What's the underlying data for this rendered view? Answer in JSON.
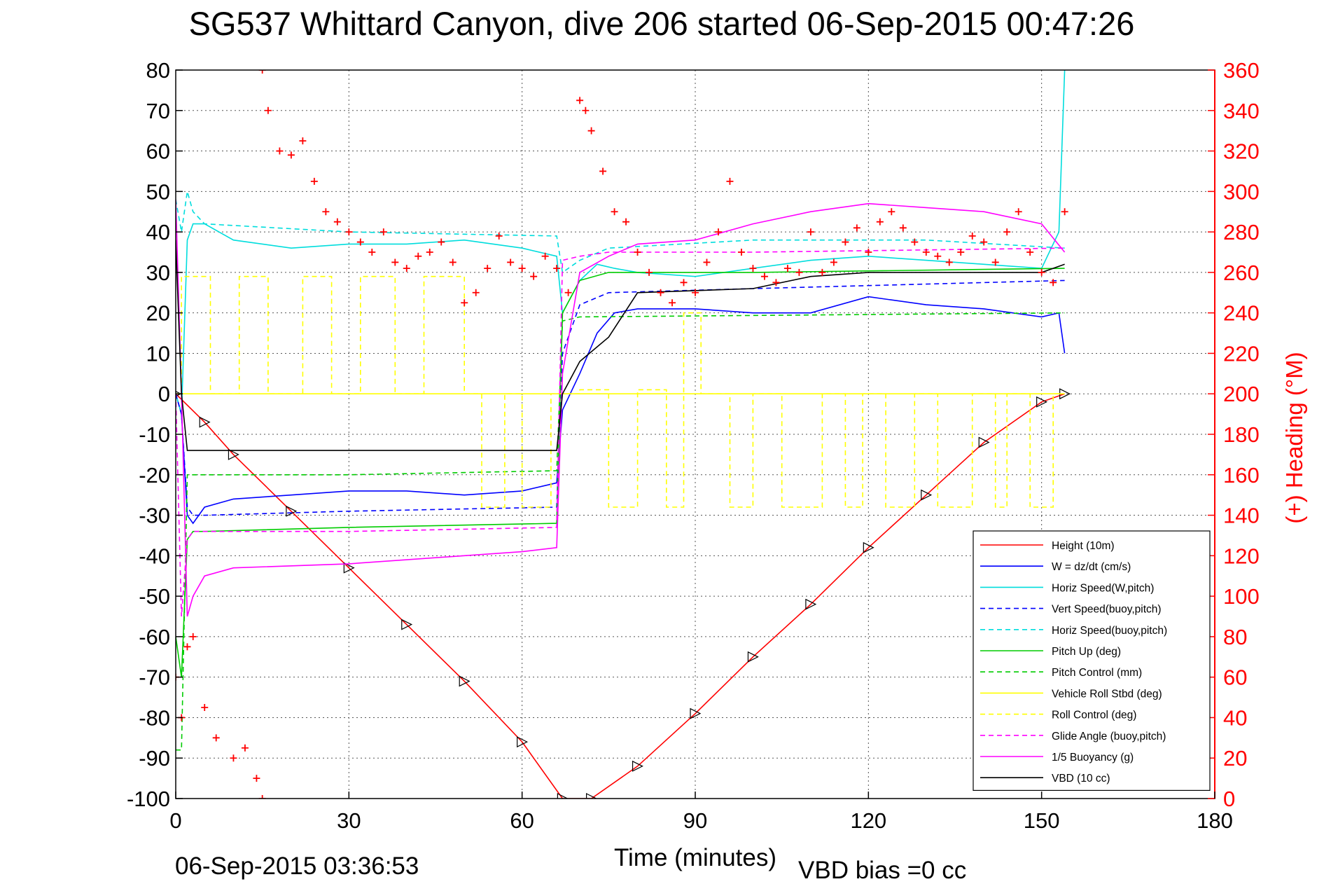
{
  "chart_data": {
    "type": "line",
    "title": "SG537 Whittard Canyon, dive 206 started 06-Sep-2015 00:47:26",
    "xlabel": "Time (minutes)",
    "ylabel": "",
    "y2label": "(+) Heading (°M)",
    "xlim": [
      0,
      180
    ],
    "ylim": [
      -100,
      80
    ],
    "y2lim": [
      0,
      360
    ],
    "x_ticks": [
      "0",
      "30",
      "60",
      "90",
      "120",
      "150",
      "180"
    ],
    "y_ticks": [
      "80",
      "70",
      "60",
      "50",
      "40",
      "30",
      "20",
      "10",
      "0",
      "-10",
      "-20",
      "-30",
      "-40",
      "-50",
      "-60",
      "-70",
      "-80",
      "-90",
      "-100"
    ],
    "y2_ticks": [
      "360",
      "340",
      "320",
      "300",
      "280",
      "260",
      "240",
      "220",
      "200",
      "180",
      "160",
      "140",
      "120",
      "100",
      "80",
      "60",
      "40",
      "20",
      "0"
    ],
    "grid": true,
    "legend_position": "bottom-right",
    "footer_left": "06-Sep-2015 03:36:53",
    "footer_right": "VBD bias =0 cc",
    "series": [
      {
        "name": "Height (10m)",
        "color": "#ff0000",
        "style": "solid",
        "x": [
          0,
          5,
          10,
          20,
          30,
          40,
          50,
          60,
          67,
          72,
          80,
          90,
          100,
          110,
          120,
          130,
          140,
          150,
          154
        ],
        "y": [
          0,
          -7,
          -15,
          -29,
          -43,
          -57,
          -71,
          -86,
          -100,
          -100,
          -92,
          -79,
          -65,
          -52,
          -38,
          -25,
          -12,
          -2,
          0
        ]
      },
      {
        "name": "W = dz/dt (cm/s)",
        "color": "#0000ff",
        "style": "solid",
        "x": [
          0,
          1,
          2,
          3,
          5,
          10,
          20,
          30,
          40,
          50,
          60,
          66,
          67,
          70,
          73,
          76,
          80,
          90,
          100,
          110,
          120,
          130,
          140,
          150,
          153,
          154
        ],
        "y": [
          0,
          -5,
          -30,
          -32,
          -28,
          -26,
          -25,
          -24,
          -24,
          -25,
          -24,
          -22,
          -4,
          5,
          15,
          20,
          21,
          21,
          20,
          20,
          24,
          22,
          21,
          19,
          20,
          10
        ]
      },
      {
        "name": "Horiz Speed(W,pitch)",
        "color": "#00dddd",
        "style": "solid",
        "x": [
          0,
          1,
          2,
          3,
          5,
          10,
          20,
          30,
          40,
          50,
          60,
          66,
          67,
          70,
          73,
          76,
          80,
          90,
          100,
          110,
          120,
          130,
          140,
          150,
          153,
          154
        ],
        "y": [
          0,
          -5,
          38,
          42,
          42,
          38,
          36,
          37,
          37,
          38,
          36,
          34,
          20,
          28,
          32,
          31,
          30,
          29,
          31,
          33,
          34,
          33,
          32,
          31,
          40,
          80
        ]
      },
      {
        "name": "Vert Speed(buoy,pitch)",
        "color": "#0000ff",
        "style": "dashed",
        "x": [
          0,
          1,
          2,
          3,
          5,
          30,
          66,
          67,
          70,
          75,
          100,
          154
        ],
        "y": [
          0,
          -5,
          -28,
          -30,
          -30,
          -29,
          -28,
          10,
          22,
          25,
          26,
          28
        ]
      },
      {
        "name": "Horiz Speed(buoy,pitch)",
        "color": "#00dddd",
        "style": "dashed",
        "x": [
          0,
          1,
          2,
          3,
          5,
          30,
          66,
          67,
          70,
          75,
          100,
          130,
          154
        ],
        "y": [
          48,
          40,
          50,
          45,
          42,
          40,
          39,
          30,
          33,
          36,
          38,
          38,
          36
        ]
      },
      {
        "name": "Pitch Up (deg)",
        "color": "#00cc00",
        "style": "solid",
        "x": [
          0,
          1,
          2,
          3,
          5,
          30,
          66,
          67,
          70,
          75,
          100,
          154
        ],
        "y": [
          -60,
          -70,
          -36,
          -34,
          -34,
          -33,
          -32,
          20,
          28,
          30,
          30,
          31
        ]
      },
      {
        "name": "Pitch Control (mm)",
        "color": "#00cc00",
        "style": "dashed",
        "x": [
          0,
          1,
          2,
          3,
          30,
          66,
          67,
          70,
          154
        ],
        "y": [
          -88,
          -88,
          -20,
          -20,
          -20,
          -19,
          18,
          19,
          20
        ]
      },
      {
        "name": "Vehicle Roll Stbd (deg)",
        "color": "#ffff00",
        "style": "solid",
        "x": [
          0,
          2,
          5,
          30,
          60,
          90,
          120,
          154
        ],
        "y": [
          0,
          0,
          0,
          0,
          0,
          0,
          0,
          0
        ]
      },
      {
        "name": "Roll Control (deg)",
        "color": "#ffff00",
        "style": "dashed",
        "x": [
          0,
          1,
          1,
          6,
          6,
          11,
          11,
          16,
          16,
          22,
          22,
          27,
          27,
          32,
          32,
          38,
          38,
          43,
          43,
          50,
          50,
          53,
          53,
          57,
          57,
          60,
          60,
          65,
          65,
          70,
          70,
          75,
          75,
          80,
          80,
          85,
          85,
          88,
          88,
          91,
          91,
          96,
          96,
          100,
          100,
          105,
          105,
          112,
          112,
          116,
          116,
          119,
          119,
          123,
          123,
          128,
          128,
          132,
          132,
          138,
          138,
          142,
          142,
          144,
          144,
          148,
          148,
          152,
          152,
          154
        ],
        "y": [
          0,
          0,
          29,
          29,
          0,
          0,
          29,
          29,
          0,
          0,
          29,
          29,
          0,
          0,
          29,
          29,
          0,
          0,
          29,
          29,
          0,
          0,
          -28,
          -28,
          0,
          0,
          -28,
          -28,
          0,
          0,
          1,
          1,
          -28,
          -28,
          1,
          1,
          -28,
          -28,
          20,
          20,
          0,
          0,
          -28,
          -28,
          0,
          0,
          -28,
          -28,
          0,
          0,
          -28,
          -28,
          0,
          0,
          -28,
          -28,
          0,
          0,
          -28,
          -28,
          0,
          0,
          -28,
          -28,
          0,
          0,
          -28,
          -28,
          0,
          0
        ]
      },
      {
        "name": "Glide Angle (buoy,pitch)",
        "color": "#ff00ff",
        "style": "dashed",
        "x": [
          0,
          1,
          2,
          3,
          5,
          30,
          66,
          67,
          70,
          75,
          100,
          154
        ],
        "y": [
          0,
          -55,
          -36,
          -34,
          -34,
          -34,
          -33,
          33,
          34,
          35,
          35,
          36
        ]
      },
      {
        "name": "1/5 Buoyancy (g)",
        "color": "#ff00ff",
        "style": "solid",
        "x": [
          0,
          1,
          2,
          3,
          5,
          10,
          30,
          50,
          60,
          66,
          67,
          70,
          75,
          80,
          90,
          100,
          110,
          120,
          130,
          140,
          150,
          154
        ],
        "y": [
          48,
          0,
          -55,
          -50,
          -45,
          -43,
          -42,
          -40,
          -39,
          -38,
          5,
          30,
          34,
          37,
          38,
          42,
          45,
          47,
          46,
          45,
          42,
          35
        ]
      },
      {
        "name": "VBD (10 cc)",
        "color": "#000000",
        "style": "solid",
        "x": [
          0,
          1,
          2,
          66,
          67,
          70,
          75,
          80,
          100,
          110,
          120,
          150,
          154
        ],
        "y": [
          38,
          0,
          -14,
          -14,
          0,
          8,
          14,
          25,
          26,
          29,
          30,
          30,
          32
        ]
      },
      {
        "name": "Heading",
        "color": "#ff0000",
        "style": "plus",
        "axis": "right",
        "x": [
          0,
          1,
          2,
          3,
          5,
          7,
          10,
          12,
          14,
          15,
          15,
          16,
          18,
          20,
          22,
          24,
          26,
          28,
          30,
          32,
          34,
          36,
          38,
          40,
          42,
          44,
          46,
          48,
          50,
          52,
          54,
          56,
          58,
          60,
          62,
          64,
          66,
          68,
          70,
          71,
          72,
          74,
          76,
          78,
          80,
          82,
          84,
          86,
          88,
          90,
          92,
          94,
          96,
          98,
          100,
          102,
          104,
          106,
          108,
          110,
          112,
          114,
          116,
          118,
          120,
          122,
          124,
          126,
          128,
          130,
          132,
          134,
          136,
          138,
          140,
          142,
          144,
          146,
          148,
          150,
          152,
          154
        ],
        "y": [
          60,
          40,
          75,
          80,
          45,
          30,
          20,
          25,
          10,
          0,
          360,
          340,
          320,
          318,
          325,
          305,
          290,
          285,
          280,
          275,
          270,
          280,
          265,
          262,
          268,
          270,
          275,
          265,
          245,
          250,
          262,
          278,
          265,
          262,
          258,
          268,
          262,
          250,
          345,
          340,
          330,
          310,
          290,
          285,
          270,
          260,
          250,
          245,
          255,
          250,
          265,
          280,
          305,
          270,
          262,
          258,
          255,
          262,
          260,
          280,
          260,
          265,
          275,
          282,
          270,
          285,
          290,
          282,
          275,
          270,
          268,
          265,
          270,
          278,
          275,
          265,
          280,
          290,
          270,
          260,
          255,
          290
        ]
      }
    ]
  }
}
